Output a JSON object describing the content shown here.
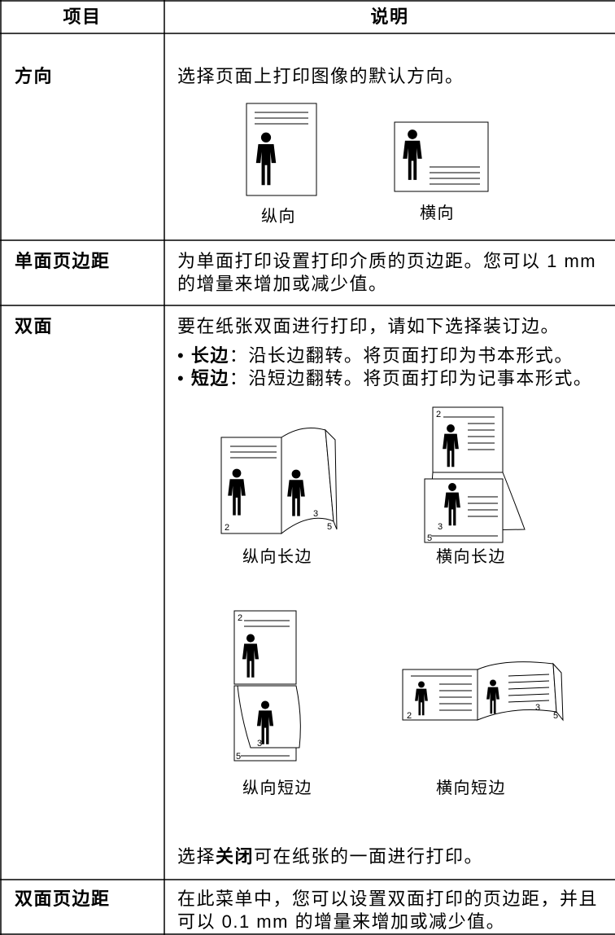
{
  "table": {
    "header": [
      "项目",
      "说明"
    ],
    "rows": [
      {
        "item": "方向",
        "text": "选择页面上打印图像的默认方向。",
        "figures": [
          {
            "caption": "纵向"
          },
          {
            "caption": "横向"
          }
        ]
      },
      {
        "item": "单面页边距",
        "text": "为单面打印设置打印介质的页边距。您可以 1 mm 的增量来增加或减少值。"
      },
      {
        "item": "双面",
        "text": "要在纸张双面进行打印，请如下选择装订边。",
        "bullets": [
          {
            "term": "长边",
            "desc": "：沿长边翻转。将页面打印为书本形式。"
          },
          {
            "term": "短边",
            "desc": "：沿短边翻转。将页面打印为记事本形式。"
          }
        ],
        "figures": [
          {
            "caption": "纵向长边",
            "page_numbers": [
              "2",
              "3",
              "5"
            ]
          },
          {
            "caption": "横向长边",
            "page_numbers": [
              "2",
              "3",
              "5"
            ]
          },
          {
            "caption": "纵向短边",
            "page_numbers": [
              "2",
              "3",
              "5"
            ]
          },
          {
            "caption": "横向短边",
            "page_numbers": [
              "2",
              "3",
              "5"
            ]
          }
        ],
        "note": [
          "选择",
          "关闭",
          "可在纸张的一面进行打印。"
        ]
      },
      {
        "item": "双面页边距",
        "text": "在此菜单中，您可以设置双面打印的页边距，并且可以 0.1 mm 的增量来增加或减少值。"
      }
    ]
  }
}
